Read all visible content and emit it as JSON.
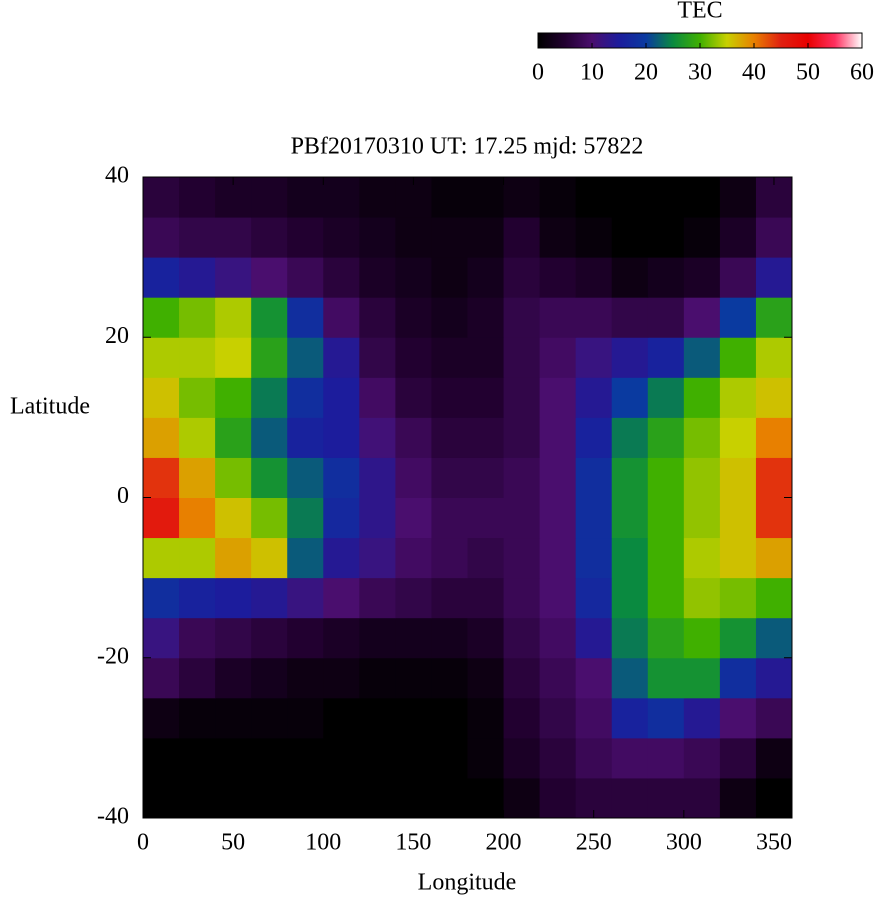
{
  "chart_data": {
    "type": "heatmap",
    "title": "PBf20170310  UT: 17.25  mjd: 57822",
    "x_label": "Longitude",
    "y_label": "Latitude",
    "xlim": [
      0,
      360
    ],
    "ylim": [
      -40,
      40
    ],
    "xticks": [
      0,
      50,
      100,
      150,
      200,
      250,
      300,
      350
    ],
    "yticks": [
      -40,
      -20,
      0,
      20,
      40
    ],
    "xbins": [
      0,
      20,
      40,
      60,
      80,
      100,
      120,
      140,
      160,
      180,
      200,
      220,
      240,
      260,
      280,
      300,
      320,
      340,
      360
    ],
    "ybins": [
      -40,
      -35,
      -30,
      -25,
      -20,
      -15,
      -10,
      -5,
      0,
      5,
      10,
      15,
      20,
      25,
      30,
      35,
      40
    ],
    "values": [
      [
        0,
        0,
        0,
        0,
        0,
        0,
        0,
        0,
        0,
        0,
        2,
        5,
        6,
        6,
        6,
        6,
        2,
        0
      ],
      [
        0,
        0,
        0,
        0,
        0,
        0,
        0,
        0,
        0,
        1,
        4,
        6,
        8,
        9,
        9,
        8,
        6,
        2
      ],
      [
        2,
        1,
        1,
        1,
        1,
        0,
        0,
        0,
        0,
        1,
        5,
        7,
        9,
        16,
        18,
        14,
        10,
        8
      ],
      [
        8,
        6,
        4,
        3,
        2,
        2,
        1,
        1,
        1,
        2,
        6,
        8,
        10,
        22,
        26,
        26,
        18,
        14
      ],
      [
        12,
        8,
        7,
        6,
        5,
        4,
        3,
        3,
        3,
        4,
        7,
        9,
        14,
        24,
        28,
        30,
        26,
        22
      ],
      [
        18,
        16,
        15,
        14,
        12,
        10,
        8,
        7,
        6,
        6,
        8,
        10,
        17,
        25,
        30,
        33,
        32,
        30
      ],
      [
        34,
        34,
        38,
        36,
        22,
        14,
        12,
        9,
        8,
        7,
        8,
        10,
        18,
        25,
        30,
        34,
        36,
        38
      ],
      [
        46,
        40,
        36,
        32,
        24,
        17,
        13,
        10,
        8,
        8,
        8,
        10,
        18,
        26,
        30,
        33,
        36,
        44
      ],
      [
        44,
        38,
        32,
        26,
        22,
        18,
        13,
        9,
        7,
        7,
        8,
        10,
        18,
        26,
        30,
        33,
        36,
        44
      ],
      [
        38,
        34,
        28,
        22,
        16,
        15,
        11,
        8,
        6,
        6,
        7,
        10,
        16,
        24,
        28,
        32,
        35,
        40
      ],
      [
        36,
        32,
        30,
        24,
        18,
        15,
        9,
        6,
        5,
        5,
        7,
        10,
        14,
        20,
        24,
        30,
        34,
        36
      ],
      [
        34,
        34,
        35,
        28,
        22,
        14,
        7,
        5,
        4,
        4,
        7,
        9,
        12,
        14,
        16,
        22,
        30,
        34
      ],
      [
        30,
        32,
        34,
        26,
        18,
        9,
        6,
        4,
        3,
        4,
        7,
        8,
        8,
        7,
        7,
        10,
        20,
        28
      ],
      [
        16,
        14,
        12,
        10,
        8,
        6,
        4,
        3,
        2,
        3,
        6,
        5,
        4,
        2,
        3,
        4,
        8,
        14
      ],
      [
        8,
        7,
        7,
        6,
        5,
        4,
        3,
        2,
        2,
        2,
        5,
        2,
        1,
        0,
        0,
        1,
        4,
        8
      ],
      [
        6,
        5,
        4,
        4,
        3,
        3,
        2,
        2,
        1,
        1,
        2,
        1,
        0,
        0,
        0,
        0,
        2,
        6
      ]
    ],
    "colorbar": {
      "label": "TEC",
      "lim": [
        0,
        60
      ],
      "ticks": [
        0,
        10,
        20,
        30,
        40,
        50,
        60
      ],
      "colormap": [
        "#000000",
        "#220030",
        "#4a0e6e",
        "#1c1c9c",
        "#0a3aa0",
        "#0a8a40",
        "#40b000",
        "#c8d000",
        "#e88000",
        "#e02010",
        "#e80000",
        "#ff3060",
        "#ffffff"
      ]
    }
  }
}
